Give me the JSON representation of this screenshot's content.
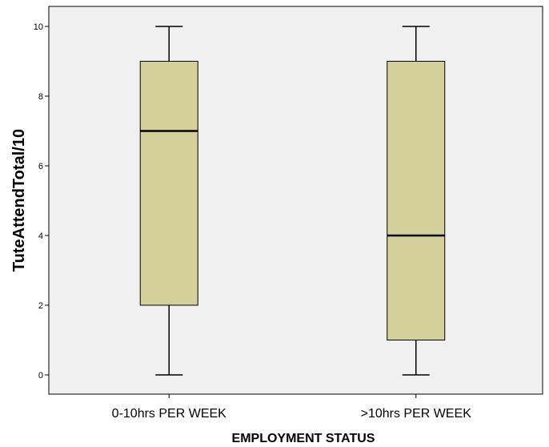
{
  "chart_data": {
    "type": "boxplot",
    "xlabel": "EMPLOYMENT STATUS",
    "ylabel": "TuteAttendTotal/10",
    "ylim": [
      0,
      10
    ],
    "yticks": [
      "0",
      "2",
      "4",
      "6",
      "8",
      "10"
    ],
    "grid": false,
    "categories": [
      "0-10hrs PER WEEK",
      ">10hrs PER WEEK"
    ],
    "boxes": [
      {
        "category": "0-10hrs PER WEEK",
        "min": 0,
        "q1": 2,
        "median": 7,
        "q3": 9,
        "max": 10
      },
      {
        "category": ">10hrs PER WEEK",
        "min": 0,
        "q1": 1,
        "median": 4,
        "q3": 9,
        "max": 10
      }
    ],
    "colors": {
      "plot_background": "#f0f0f0",
      "box_fill": "#d4d09b",
      "stroke": "#000000"
    }
  }
}
